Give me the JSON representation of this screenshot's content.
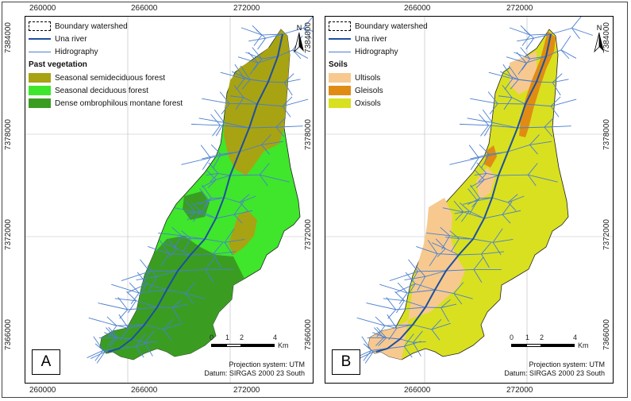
{
  "panels": [
    {
      "letter": "A",
      "legend": {
        "boundary": "Boundary watershed",
        "river": "Una river",
        "hydro": "Hidrography",
        "title": "Past vegetation",
        "classes": [
          {
            "label": "Seasonal semideciduous forest",
            "color": "#a8a312"
          },
          {
            "label": "Seasonal deciduous forest",
            "color": "#3fe62b"
          },
          {
            "label": "Dense ombrophilous montane forest",
            "color": "#3a9d22"
          }
        ]
      },
      "x_ticks_top": [
        "260000",
        "266000",
        "272000"
      ],
      "x_ticks_bottom": [
        "260000",
        "266000",
        "272000"
      ],
      "y_ticks": [
        "7384000",
        "7378000",
        "7372000",
        "7366000"
      ],
      "projection": "Projection system: UTM",
      "datum": "Datum: SIRGAS 2000 23 South"
    },
    {
      "letter": "B",
      "legend": {
        "boundary": "Boundary watershed",
        "river": "Una river",
        "hydro": "Hidrography",
        "title": "Soils",
        "classes": [
          {
            "label": "Ultisols",
            "color": "#f7c98f"
          },
          {
            "label": "Gleisols",
            "color": "#e08c14"
          },
          {
            "label": "Oxisols",
            "color": "#d9e01f"
          }
        ]
      },
      "x_ticks_top": [
        "266000",
        "272000"
      ],
      "x_ticks_bottom": [
        "266000",
        "272000"
      ],
      "y_ticks": [
        "7384000",
        "7378000",
        "7372000",
        "7366000"
      ],
      "projection": "Projection system: UTM",
      "datum": "Datum: SIRGAS 2000 23 South"
    }
  ],
  "scale": {
    "labels": [
      "0",
      "1",
      "2",
      "4"
    ],
    "unit": "Km"
  },
  "north_label": "N",
  "colors": {
    "river": "#1f4f9e",
    "hydro": "#4a7fd0",
    "background": "#ffffff"
  }
}
